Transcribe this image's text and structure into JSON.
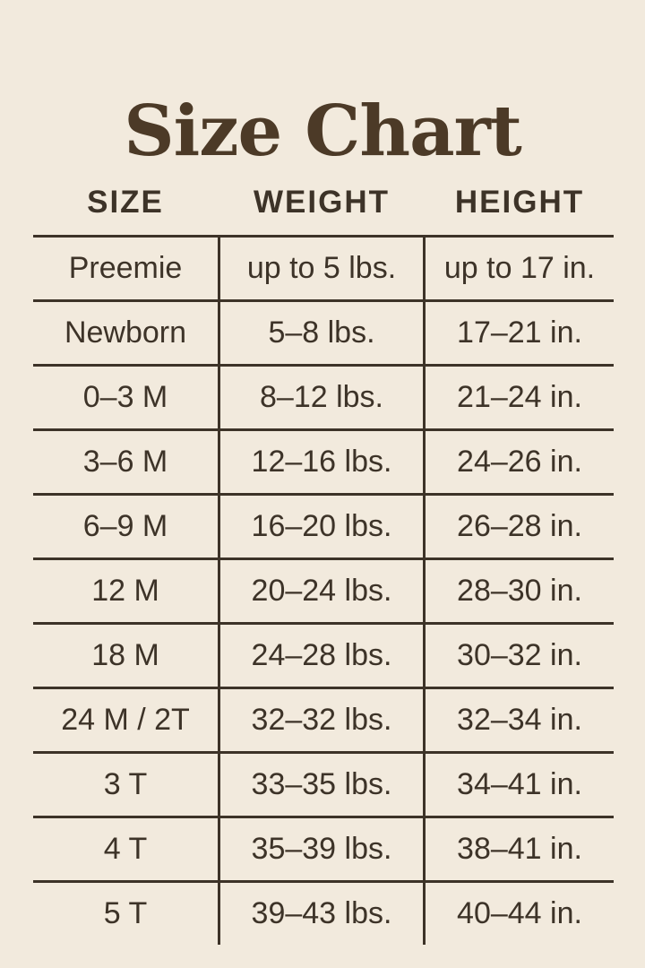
{
  "title": "Size Chart",
  "colors": {
    "background": "#f2eadd",
    "ink": "#3d3328",
    "title_ink": "#4c3a27"
  },
  "chart_data": {
    "type": "table",
    "title": "Size Chart",
    "columns": [
      "SIZE",
      "WEIGHT",
      "HEIGHT"
    ],
    "rows": [
      {
        "size": "Preemie",
        "weight": "up to 5 lbs.",
        "height": "up to 17 in."
      },
      {
        "size": "Newborn",
        "weight": "5–8 lbs.",
        "height": "17–21 in."
      },
      {
        "size": "0–3 M",
        "weight": "8–12 lbs.",
        "height": "21–24 in."
      },
      {
        "size": "3–6 M",
        "weight": "12–16 lbs.",
        "height": "24–26 in."
      },
      {
        "size": "6–9 M",
        "weight": "16–20 lbs.",
        "height": "26–28 in."
      },
      {
        "size": "12 M",
        "weight": "20–24 lbs.",
        "height": "28–30 in."
      },
      {
        "size": "18 M",
        "weight": "24–28 lbs.",
        "height": "30–32 in."
      },
      {
        "size": "24 M / 2T",
        "weight": "32–32 lbs.",
        "height": "32–34 in."
      },
      {
        "size": "3 T",
        "weight": "33–35 lbs.",
        "height": "34–41 in."
      },
      {
        "size": "4 T",
        "weight": "35–39 lbs.",
        "height": "38–41 in."
      },
      {
        "size": "5 T",
        "weight": "39–43 lbs.",
        "height": "40–44 in."
      }
    ]
  }
}
